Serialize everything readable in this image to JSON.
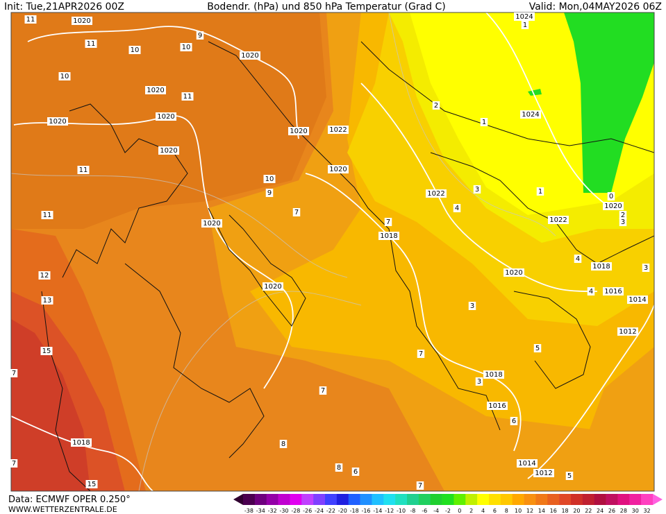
{
  "header": {
    "init": "Init: Tue,21APR2026 00Z",
    "title": "Bodendr. (hPa) und 850 hPa Temperatur (Grad C)",
    "valid": "Valid: Mon,04MAY2026 06Z"
  },
  "map": {
    "labels": [
      "1020",
      "1020",
      "1020",
      "1020",
      "1020",
      "1020",
      "1022",
      "1020",
      "1020",
      "1020",
      "1018",
      "1020",
      "1022",
      "1020",
      "1022",
      "1024",
      "1024",
      "1020",
      "1018",
      "1016",
      "1014",
      "1012",
      "1018",
      "1016",
      "1014",
      "1012",
      "1018",
      "10",
      "10",
      "10",
      "10",
      "11",
      "11",
      "11",
      "11",
      "11",
      "12",
      "13",
      "15",
      "15",
      "9",
      "9",
      "7",
      "7",
      "7",
      "7",
      "7",
      "7",
      "7",
      "8",
      "8",
      "6",
      "6",
      "3",
      "3",
      "3",
      "4",
      "4",
      "2",
      "1",
      "1",
      "1",
      "5",
      "5",
      "0",
      "3",
      "2",
      "4",
      "3"
    ]
  },
  "footer": {
    "source": "Data: ECMWF OPER 0.250°",
    "site": "WWW.WETTERZENTRALE.DE"
  },
  "scale": {
    "labels": [
      "-38",
      "-34",
      "-32",
      "-30",
      "-28",
      "-26",
      "-24",
      "-22",
      "-20",
      "-18",
      "-16",
      "-14",
      "-12",
      "-10",
      "-8",
      "-6",
      "-4",
      "-2",
      "0",
      "2",
      "4",
      "6",
      "8",
      "10",
      "12",
      "14",
      "16",
      "18",
      "20",
      "22",
      "24",
      "26",
      "28",
      "30",
      "32"
    ]
  }
}
